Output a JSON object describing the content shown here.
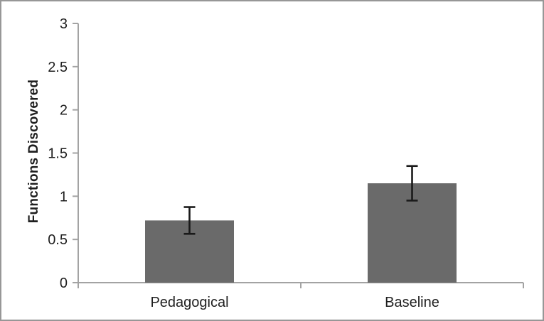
{
  "chart_data": {
    "type": "bar",
    "categories": [
      "Pedagogical",
      "Baseline"
    ],
    "values": [
      0.72,
      1.15
    ],
    "error_bars": [
      0.155,
      0.2
    ],
    "title": "",
    "xlabel": "",
    "ylabel": "Functions Discovered",
    "ylim": [
      0,
      3
    ],
    "ytick_step": 0.5,
    "ytick_labels": [
      "0",
      "0.5",
      "1",
      "1.5",
      "2",
      "2.5",
      "3"
    ],
    "grid": false,
    "legend": false,
    "bar_color": "#6a6a6a",
    "axis_color": "#a3a3a3",
    "error_color": "#1a1a1a",
    "text_color": "#1f1f1f",
    "border_color": "#979797",
    "background_color": "#ffffff"
  }
}
